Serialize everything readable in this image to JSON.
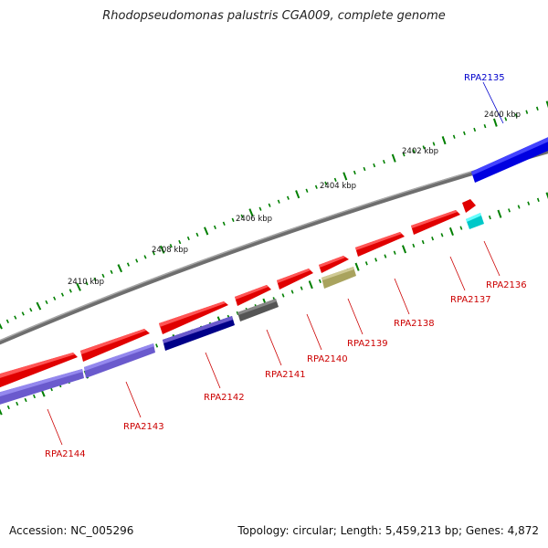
{
  "title": "Rhodopseudomonas palustris CGA009, complete genome",
  "footer": {
    "accession": "Accession: NC_005296",
    "summary": "Topology: circular; Length: 5,459,213 bp; Genes: 4,872"
  },
  "colors": {
    "forward": "#ff0000",
    "reverse": "#7b68ee",
    "reverse_dark": "#00007f",
    "backbone": "#808080",
    "tick": "#007f00",
    "highlight": "#0000ff",
    "cyan": "#00dede",
    "olive": "#b5b06a",
    "gray": "#6e6e6e",
    "forward_label": "#cc0000",
    "highlight_label": "#0000cc"
  },
  "kbp_labels": [
    "2400 kbp",
    "2402 kbp",
    "2404 kbp",
    "2406 kbp",
    "2408 kbp",
    "2410 kbp"
  ],
  "genes": [
    {
      "name": "RPA2135",
      "color": "highlight"
    },
    {
      "name": "RPA2136",
      "color": "forward"
    },
    {
      "name": "RPA2137",
      "color": "forward"
    },
    {
      "name": "RPA2138",
      "color": "forward"
    },
    {
      "name": "RPA2139",
      "color": "forward"
    },
    {
      "name": "RPA2140",
      "color": "forward"
    },
    {
      "name": "RPA2141",
      "color": "forward"
    },
    {
      "name": "RPA2142",
      "color": "forward"
    },
    {
      "name": "RPA2143",
      "color": "forward"
    },
    {
      "name": "RPA2144",
      "color": "forward"
    }
  ]
}
